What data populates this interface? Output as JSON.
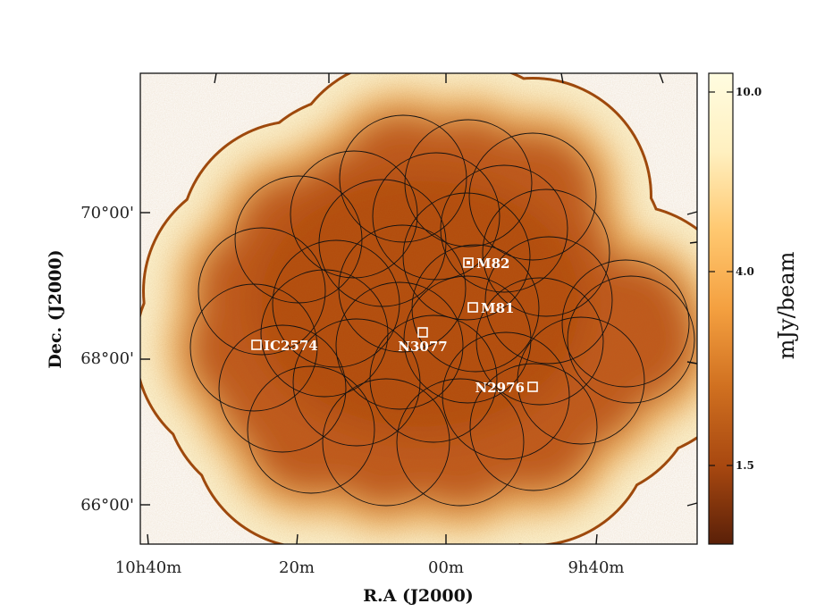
{
  "chart_data": {
    "type": "image",
    "xlabel": "R.A (J2000)",
    "ylabel": "Dec. (J2000)",
    "x_ticks": [
      "10h40m",
      "20m",
      "00m",
      "9h40m"
    ],
    "y_ticks": [
      "70°00'",
      "68°00'",
      "66°00'"
    ],
    "colorbar": {
      "label": "mJy/beam",
      "ticks": [
        "10.0",
        "4.0",
        "1.5"
      ],
      "colors": [
        "#fffce0",
        "#fff0c0",
        "#ffc870",
        "#f4a040",
        "#d07020",
        "#a84810",
        "#5a2008"
      ]
    },
    "sources": [
      {
        "name": "M82",
        "label": "M82"
      },
      {
        "name": "M81",
        "label": "M81"
      },
      {
        "name": "N3077",
        "label": "N3077"
      },
      {
        "name": "IC2574",
        "label": "IC2574"
      },
      {
        "name": "N2976",
        "label": "N2976"
      }
    ],
    "pointing_count": 30
  }
}
